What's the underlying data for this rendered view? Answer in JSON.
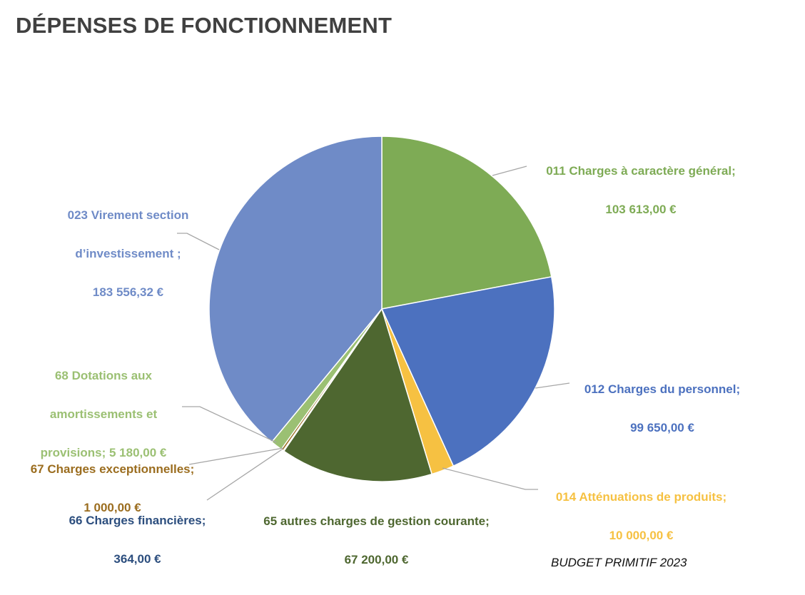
{
  "title": "DÉPENSES DE FONCTIONNEMENT",
  "footer": "BUDGET PRIMITIF 2023",
  "chart_data": {
    "type": "pie",
    "start_angle_deg": 0,
    "direction": "clockwise",
    "slices": [
      {
        "name": "011 Charges à caractère général;",
        "value": 103613.0,
        "value_label": "103 613,00  €",
        "color": "#7eab55"
      },
      {
        "name": "012 Charges du personnel;",
        "value": 99650.0,
        "value_label": "99 650,00  €",
        "color": "#4c71bf"
      },
      {
        "name": "014 Atténuations de produits;",
        "value": 10000.0,
        "value_label": "10 000,00  €",
        "color": "#f6c142"
      },
      {
        "name": "65 autres charges de gestion courante;",
        "value": 67200.0,
        "value_label": "67 200,00  €",
        "color": "#4e6730"
      },
      {
        "name": "66 Charges financières;",
        "value": 364.0,
        "value_label": "364,00  €",
        "color": "#2c4e7e"
      },
      {
        "name": "67 Charges exceptionnelles;",
        "value": 1000.0,
        "value_label": "1 000,00  €",
        "color": "#9b6d1f"
      },
      {
        "name": "68 Dotations aux amortissements et provisions;",
        "value": 5180.0,
        "value_label": "5 180,00  €",
        "color": "#9bc073"
      },
      {
        "name": "023 Virement section d’investissement  ;",
        "value": 183556.32,
        "value_label": "183 556,32  €",
        "color": "#6f8bc7"
      }
    ]
  },
  "labels": {
    "s011": {
      "line1": "011 Charges à caractère général;",
      "line2": "103 613,00  €"
    },
    "s012": {
      "line1": "012 Charges du personnel;",
      "line2": "99 650,00  €"
    },
    "s014": {
      "line1": "014 Atténuations de produits;",
      "line2": "10 000,00  €"
    },
    "s65": {
      "line1": "65 autres charges de gestion courante;",
      "line2": "67 200,00  €"
    },
    "s66": {
      "line1": "66 Charges financières;",
      "line2": "364,00  €"
    },
    "s67": {
      "line1": "67 Charges exceptionnelles;",
      "line2": "1 000,00  €"
    },
    "s68": {
      "line1": "68 Dotations aux",
      "line2": "amortissements et",
      "line3": "provisions;  5 180,00  €"
    },
    "s023": {
      "line1": "023 Virement section",
      "line2": "d’investissement  ;",
      "line3": "183 556,32  €"
    }
  }
}
